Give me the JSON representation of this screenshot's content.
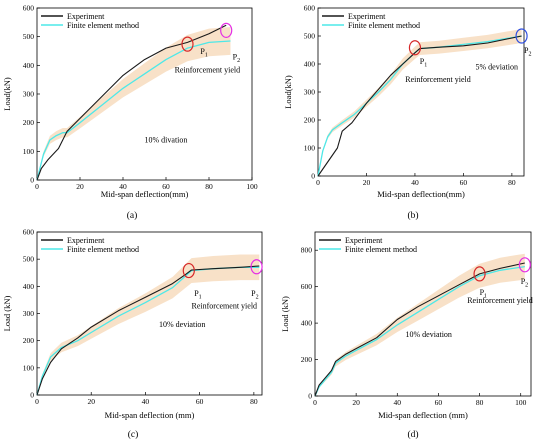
{
  "chart_data": [
    {
      "type": "line",
      "panel_label": "(a)",
      "panel_letter": "a",
      "xlabel": "Mid-span deflection(mm)",
      "ylabel": "Load(kN)",
      "xlim": [
        0,
        100
      ],
      "ylim": [
        0,
        600
      ],
      "xticks": [
        0,
        20,
        40,
        60,
        80,
        100
      ],
      "yticks": [
        0,
        100,
        200,
        300,
        400,
        500,
        600
      ],
      "legend_position": "top-left",
      "band_deviation": 0.1,
      "series": [
        {
          "name": "Experiment",
          "color": "#1a1a1a",
          "x": [
            0,
            2,
            5,
            10,
            14,
            20,
            30,
            40,
            50,
            60,
            70,
            80,
            88
          ],
          "y": [
            0,
            40,
            70,
            110,
            170,
            215,
            290,
            365,
            420,
            460,
            480,
            510,
            540
          ]
        },
        {
          "name": "Finite element method",
          "color": "#4de8e8",
          "x": [
            0,
            3,
            6,
            9,
            12,
            14,
            20,
            30,
            40,
            50,
            60,
            70,
            80,
            90
          ],
          "y": [
            0,
            90,
            140,
            155,
            165,
            165,
            200,
            260,
            320,
            370,
            420,
            460,
            480,
            485
          ]
        }
      ],
      "annotations": [
        {
          "text": "P",
          "sub": "1",
          "x": 76,
          "y": 440
        },
        {
          "text": "P",
          "sub": "2",
          "x": 91,
          "y": 420
        },
        {
          "text": "Reinforcement yield",
          "x": 64,
          "y": 375
        },
        {
          "text": "10% divation",
          "x": 50,
          "y": 130
        }
      ],
      "markers": [
        {
          "x": 70,
          "y": 474,
          "color": "#d62728"
        },
        {
          "x": 88,
          "y": 522,
          "color": "#e52ee5"
        }
      ]
    },
    {
      "type": "line",
      "panel_label": "(b)",
      "panel_letter": "b",
      "xlabel": "Mid-span deflection(mm)",
      "ylabel": "Load(kN)",
      "xlim": [
        0,
        85
      ],
      "ylim": [
        0,
        600
      ],
      "xticks": [
        0,
        20,
        40,
        60,
        80
      ],
      "yticks": [
        0,
        100,
        200,
        300,
        400,
        500,
        600
      ],
      "legend_position": "top-left",
      "band_deviation": 0.05,
      "series": [
        {
          "name": "Experiment",
          "color": "#1a1a1a",
          "x": [
            0,
            4,
            8,
            10,
            14,
            20,
            25,
            30,
            35,
            40,
            42,
            50,
            60,
            70,
            84
          ],
          "y": [
            0,
            50,
            100,
            160,
            190,
            260,
            310,
            360,
            400,
            440,
            455,
            460,
            465,
            475,
            500
          ]
        },
        {
          "name": "Finite element method",
          "color": "#4de8e8",
          "x": [
            0,
            2,
            4,
            6,
            10,
            15,
            20,
            25,
            30,
            35,
            40,
            42,
            50,
            60,
            70,
            84
          ],
          "y": [
            0,
            90,
            140,
            165,
            190,
            220,
            260,
            300,
            345,
            400,
            440,
            455,
            460,
            470,
            480,
            500
          ]
        }
      ],
      "annotations": [
        {
          "text": "P",
          "sub": "1",
          "x": 42,
          "y": 400
        },
        {
          "text": "P",
          "sub": "2",
          "x": 85,
          "y": 440
        },
        {
          "text": "Reinforcement yield",
          "x": 36,
          "y": 335
        },
        {
          "text": "5% deviation",
          "x": 65,
          "y": 380
        }
      ],
      "markers": [
        {
          "x": 40,
          "y": 458,
          "color": "#d62728"
        },
        {
          "x": 84,
          "y": 500,
          "color": "#3050e0"
        }
      ]
    },
    {
      "type": "line",
      "panel_label": "(c)",
      "panel_letter": "c",
      "xlabel": "Mid-span deflection (mm)",
      "ylabel": "Load (kN)",
      "xlim": [
        0,
        83
      ],
      "ylim": [
        0,
        600
      ],
      "xticks": [
        0,
        20,
        40,
        60,
        80
      ],
      "yticks": [
        0,
        100,
        200,
        300,
        400,
        500,
        600
      ],
      "legend_position": "top-left",
      "band_deviation": 0.1,
      "series": [
        {
          "name": "Experiment",
          "color": "#1a1a1a",
          "x": [
            0,
            2,
            5,
            9,
            15,
            20,
            30,
            40,
            50,
            55,
            57,
            65,
            75,
            82
          ],
          "y": [
            0,
            60,
            120,
            170,
            210,
            250,
            310,
            360,
            410,
            445,
            460,
            465,
            470,
            475
          ]
        },
        {
          "name": "Finite element method",
          "color": "#4de8e8",
          "x": [
            0,
            2,
            5,
            9,
            15,
            20,
            30,
            40,
            50,
            55,
            57,
            65,
            75,
            82
          ],
          "y": [
            0,
            70,
            140,
            175,
            200,
            230,
            290,
            340,
            395,
            440,
            458,
            465,
            470,
            470
          ]
        }
      ],
      "annotations": [
        {
          "text": "P",
          "sub": "1",
          "x": 58,
          "y": 365
        },
        {
          "text": "P",
          "sub": "2",
          "x": 79,
          "y": 365
        },
        {
          "text": "Reinforcement yield",
          "x": 57,
          "y": 318
        },
        {
          "text": "10% deviation",
          "x": 45,
          "y": 250
        }
      ],
      "markers": [
        {
          "x": 56,
          "y": 458,
          "color": "#d62728"
        },
        {
          "x": 81,
          "y": 472,
          "color": "#e52ee5"
        }
      ]
    },
    {
      "type": "line",
      "panel_label": "(d)",
      "panel_letter": "d",
      "xlabel": "Mid-span deflection (mm)",
      "ylabel": "Load (kN)",
      "xlim": [
        0,
        105
      ],
      "ylim": [
        0,
        900
      ],
      "xticks": [
        0,
        20,
        40,
        60,
        80,
        100
      ],
      "yticks": [
        0,
        200,
        400,
        600,
        800
      ],
      "legend_position": "top-left",
      "band_deviation": 0.1,
      "series": [
        {
          "name": "Experiment",
          "color": "#1a1a1a",
          "x": [
            0,
            2,
            5,
            8,
            10,
            15,
            20,
            30,
            40,
            50,
            60,
            70,
            80,
            90,
            102
          ],
          "y": [
            0,
            60,
            100,
            140,
            190,
            230,
            260,
            320,
            420,
            490,
            550,
            610,
            670,
            700,
            730
          ]
        },
        {
          "name": "Finite element method",
          "color": "#4de8e8",
          "x": [
            0,
            2,
            5,
            8,
            10,
            15,
            20,
            30,
            40,
            50,
            60,
            70,
            80,
            90,
            102
          ],
          "y": [
            0,
            50,
            90,
            130,
            180,
            220,
            250,
            310,
            390,
            460,
            530,
            600,
            660,
            690,
            710
          ]
        }
      ],
      "annotations": [
        {
          "text": "P",
          "sub": "1",
          "x": 80,
          "y": 555
        },
        {
          "text": "P",
          "sub": "2",
          "x": 100,
          "y": 615
        },
        {
          "text": "Reinforcement yield",
          "x": 74,
          "y": 510
        },
        {
          "text": "10% deviation",
          "x": 44,
          "y": 325
        }
      ],
      "markers": [
        {
          "x": 80,
          "y": 670,
          "color": "#d62728"
        },
        {
          "x": 102,
          "y": 720,
          "color": "#e52ee5"
        }
      ]
    }
  ]
}
